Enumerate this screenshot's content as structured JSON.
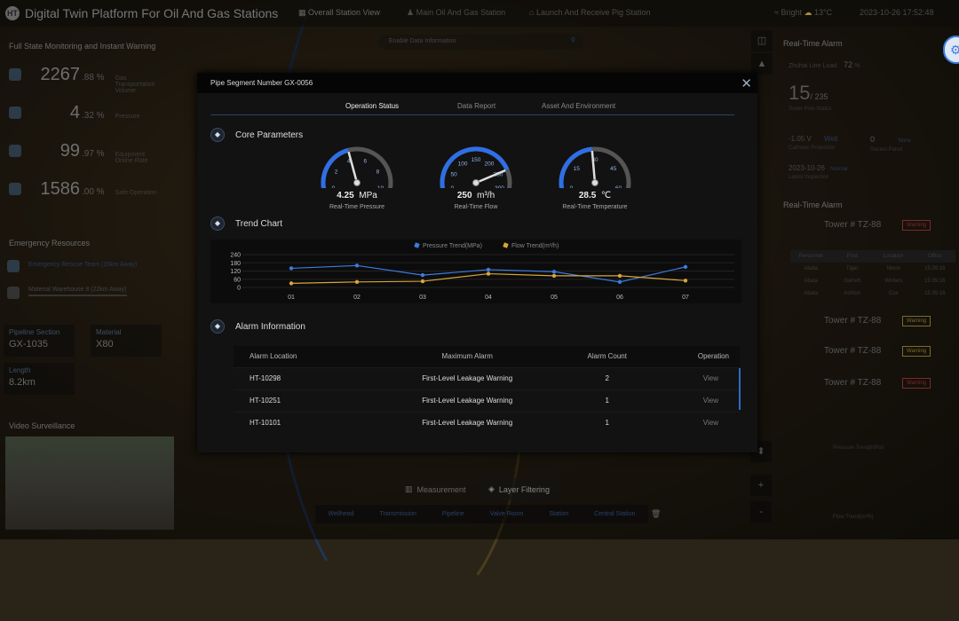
{
  "app": {
    "title": "Digital Twin Platform For Oil And Gas Stations",
    "logo": "HT"
  },
  "nav": [
    {
      "label": "Overall Station View",
      "icon": "map-icon"
    },
    {
      "label": "Main Oil And Gas Station",
      "icon": "user-icon"
    },
    {
      "label": "Launch And Receive Pig Station",
      "icon": "home-icon"
    }
  ],
  "weather": {
    "label": "Bright",
    "temp": "13°C",
    "datetime": "2023-10-26 17:52:48"
  },
  "search": {
    "placeholder": "Enable Data Information"
  },
  "left": {
    "section1": "Full State Monitoring and Instant Warning",
    "stats": [
      {
        "big": "2267",
        "small": ".88 %",
        "label": "Gas Transportation Volume"
      },
      {
        "big": "4",
        "small": ".32 %",
        "label": "Pressure"
      },
      {
        "big": "99",
        "small": ".97 %",
        "label": "Equipment Online Rate"
      },
      {
        "big": "1586",
        "small": ".00 %",
        "label": "Safe Operation"
      }
    ],
    "section2": "Emergency Resources",
    "resources": [
      "Emergency Rescue Team (15km Away)",
      "Material Warehouse 8 (22km Away)"
    ],
    "info": [
      {
        "k": "Pipeline Section",
        "v": "GX-1035"
      },
      {
        "k": "Material",
        "v": "X80"
      },
      {
        "k": "Length",
        "v": "8.2km"
      }
    ],
    "section3": "Video Surveillance"
  },
  "right": {
    "title": "Real-Time Alarm",
    "load_label": "Zhuhai Line Load",
    "load_value": "72",
    "load_unit": "%",
    "pole_count": "15",
    "pole_total": "/ 235",
    "pole_label": "Tower Pole Status",
    "voltage": "-1.05 V",
    "voltage_tag": "Well",
    "voltage_label": "Cathodic Protection",
    "patrol": "0",
    "patrol_tag": "None",
    "patrol_label": "Recent Patrol",
    "date": "2023-10-26",
    "date_tag": "Normal",
    "date_label": "Latest Inspection",
    "alarm_title": "Real-Time Alarm",
    "towers": [
      {
        "name": "Tower # TZ-88",
        "status": "Warning",
        "color": "#7a2a2a"
      },
      {
        "name": "Tower # TZ-88",
        "status": "Warning",
        "color": "#7a6a2a"
      },
      {
        "name": "Tower # TZ-88",
        "status": "Warning",
        "color": "#7a6a2a"
      },
      {
        "name": "Tower # TZ-88",
        "status": "Warning",
        "color": "#7a2a2a"
      }
    ],
    "mini_headers": [
      "Personnel",
      "Post",
      "Location",
      "Office"
    ],
    "mini_rows": [
      [
        "Abata",
        "Tiger",
        "Nixon",
        "15:39:16"
      ],
      [
        "Abata",
        "Garrett",
        "Winters",
        "15:39:16"
      ],
      [
        "Abata",
        "Ashton",
        "Cox",
        "15:39:16"
      ]
    ],
    "mini_chart1": "Pressure Trend(MPa)",
    "mini_chart2": "Flow Trend(m³/h)"
  },
  "modal": {
    "title": "Pipe Segment Number GX-0056",
    "tabs": [
      "Operation Status",
      "Data Report",
      "Asset And Environment"
    ],
    "active_tab": 0,
    "sections": {
      "core": "Core Parameters",
      "trend": "Trend Chart",
      "alarm": "Alarm Information"
    },
    "gauges": [
      {
        "value": "4.25",
        "num": 4.25,
        "unit": "MPa",
        "label": "Real-Time Pressure",
        "max": 10,
        "ticks": [
          0,
          2,
          4,
          6,
          8,
          10
        ]
      },
      {
        "value": "250",
        "num": 250,
        "unit": "m³/h",
        "label": "Real-Time Flow",
        "max": 300,
        "ticks": [
          0,
          50,
          100,
          150,
          200,
          250,
          300
        ]
      },
      {
        "value": "28.5",
        "num": 28.5,
        "unit": "℃",
        "label": "Real-Time Temperature",
        "max": 60,
        "ticks": [
          0,
          15,
          30,
          45,
          60
        ]
      }
    ],
    "alarm_table": {
      "headers": [
        "Alarm Location",
        "Maximum Alarm",
        "Alarm Count",
        "Operation"
      ],
      "rows": [
        [
          "HT-10298",
          "First-Level Leakage Warning",
          "2",
          "View"
        ],
        [
          "HT-10251",
          "First-Level Leakage Warning",
          "1",
          "View"
        ],
        [
          "HT-10101",
          "First-Level Leakage Warning",
          "1",
          "View"
        ]
      ]
    }
  },
  "chart_data": {
    "type": "line",
    "categories": [
      "01",
      "02",
      "03",
      "04",
      "05",
      "06",
      "07"
    ],
    "ylim": [
      0,
      240
    ],
    "yticks": [
      0,
      60,
      120,
      180,
      240
    ],
    "grid": true,
    "legend": "top",
    "series": [
      {
        "name": "Pressure Trend(MPa)",
        "color": "#3b7be0",
        "values": [
          140,
          160,
          90,
          130,
          115,
          40,
          150
        ]
      },
      {
        "name": "Flow Trend(m³/h)",
        "color": "#d9a53a",
        "values": [
          30,
          40,
          45,
          100,
          85,
          85,
          50
        ]
      }
    ]
  },
  "toolbar": {
    "measure": "Measurement",
    "layer": "Layer Filtering",
    "layers": [
      "Wellhead",
      "Transmission",
      "Pipeline",
      "Valve Room",
      "Station",
      "Central Station"
    ]
  },
  "colors": {
    "accent": "#3b7be0",
    "flow": "#d9a53a",
    "panel": "#121212"
  }
}
